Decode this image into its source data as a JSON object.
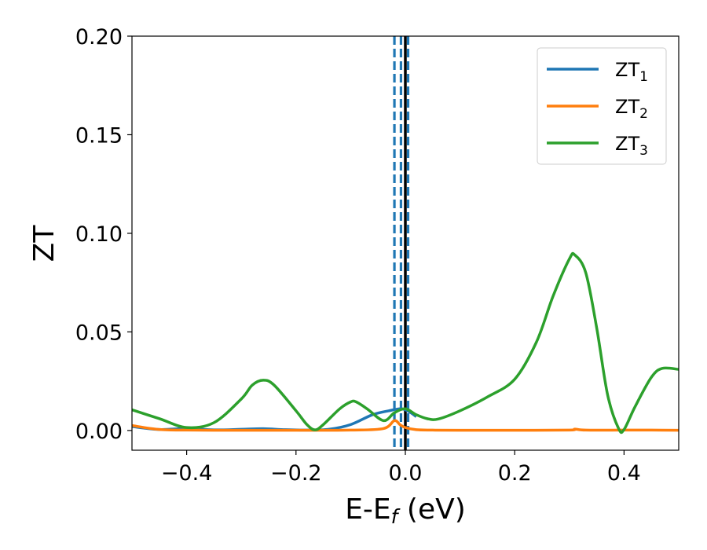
{
  "chart_data": {
    "type": "line",
    "xlabel": {
      "main": "E-E",
      "sub": "f",
      "suffix": " (eV)"
    },
    "ylabel": "ZT",
    "xlim": [
      -0.5,
      0.5
    ],
    "ylim": [
      -0.01,
      0.2
    ],
    "xticks": [
      -0.4,
      -0.2,
      0.0,
      0.2,
      0.4
    ],
    "xtick_labels": [
      "−0.4",
      "−0.2",
      "0.0",
      "0.2",
      "0.4"
    ],
    "yticks": [
      0.0,
      0.05,
      0.1,
      0.15,
      0.2
    ],
    "ytick_labels": [
      "0.00",
      "0.05",
      "0.10",
      "0.15",
      "0.20"
    ],
    "grid": false,
    "legend_position": "top-right",
    "vertical_lines": [
      {
        "x": -0.02,
        "style": "dashed",
        "color": "#1f77b4"
      },
      {
        "x": -0.008,
        "style": "dashed",
        "color": "#1f77b4"
      },
      {
        "x": 0.005,
        "style": "dashed",
        "color": "#1f77b4"
      },
      {
        "x": 0.0,
        "style": "solid",
        "color": "#000000"
      }
    ],
    "series": [
      {
        "name": "ZT",
        "name_sub": "1",
        "color": "#1f77b4",
        "x": [
          -0.5,
          -0.45,
          -0.4,
          -0.35,
          -0.3,
          -0.26,
          -0.22,
          -0.18,
          -0.14,
          -0.1,
          -0.06,
          -0.03,
          -0.01,
          0.0,
          0.01,
          0.02
        ],
        "y": [
          0.002,
          0.0005,
          0.001,
          0.0003,
          0.0006,
          0.0009,
          0.0004,
          0.0002,
          0.0006,
          0.003,
          0.008,
          0.01,
          0.011,
          0.0105,
          0.009,
          0.007
        ]
      },
      {
        "name": "ZT",
        "name_sub": "2",
        "color": "#ff7f0e",
        "x": [
          -0.5,
          -0.45,
          -0.4,
          -0.35,
          -0.3,
          -0.2,
          -0.1,
          -0.04,
          -0.02,
          -0.01,
          0.0,
          0.02,
          0.05,
          0.1,
          0.2,
          0.3,
          0.31,
          0.33,
          0.4,
          0.45,
          0.5
        ],
        "y": [
          0.0025,
          0.0005,
          0.0002,
          0.0001,
          0.0001,
          0.0001,
          0.0002,
          0.001,
          0.005,
          0.003,
          0.0015,
          0.0004,
          0.0002,
          0.0001,
          0.0001,
          0.0002,
          0.0007,
          0.0002,
          0.0002,
          0.0002,
          0.0001
        ]
      },
      {
        "name": "ZT",
        "name_sub": "3",
        "color": "#2ca02c",
        "x": [
          -0.5,
          -0.45,
          -0.4,
          -0.35,
          -0.3,
          -0.28,
          -0.26,
          -0.24,
          -0.2,
          -0.18,
          -0.165,
          -0.15,
          -0.12,
          -0.1,
          -0.09,
          -0.07,
          -0.04,
          -0.02,
          0.0,
          0.02,
          0.04,
          0.06,
          0.1,
          0.15,
          0.2,
          0.24,
          0.27,
          0.3,
          0.31,
          0.33,
          0.35,
          0.37,
          0.39,
          0.4,
          0.42,
          0.45,
          0.47,
          0.5
        ],
        "y": [
          0.0105,
          0.006,
          0.0015,
          0.004,
          0.016,
          0.023,
          0.0255,
          0.023,
          0.01,
          0.003,
          0.0003,
          0.003,
          0.011,
          0.0145,
          0.0145,
          0.011,
          0.005,
          0.009,
          0.011,
          0.008,
          0.006,
          0.0058,
          0.01,
          0.017,
          0.026,
          0.045,
          0.068,
          0.087,
          0.089,
          0.08,
          0.052,
          0.018,
          0.001,
          0.0005,
          0.012,
          0.027,
          0.0315,
          0.031
        ]
      }
    ]
  }
}
